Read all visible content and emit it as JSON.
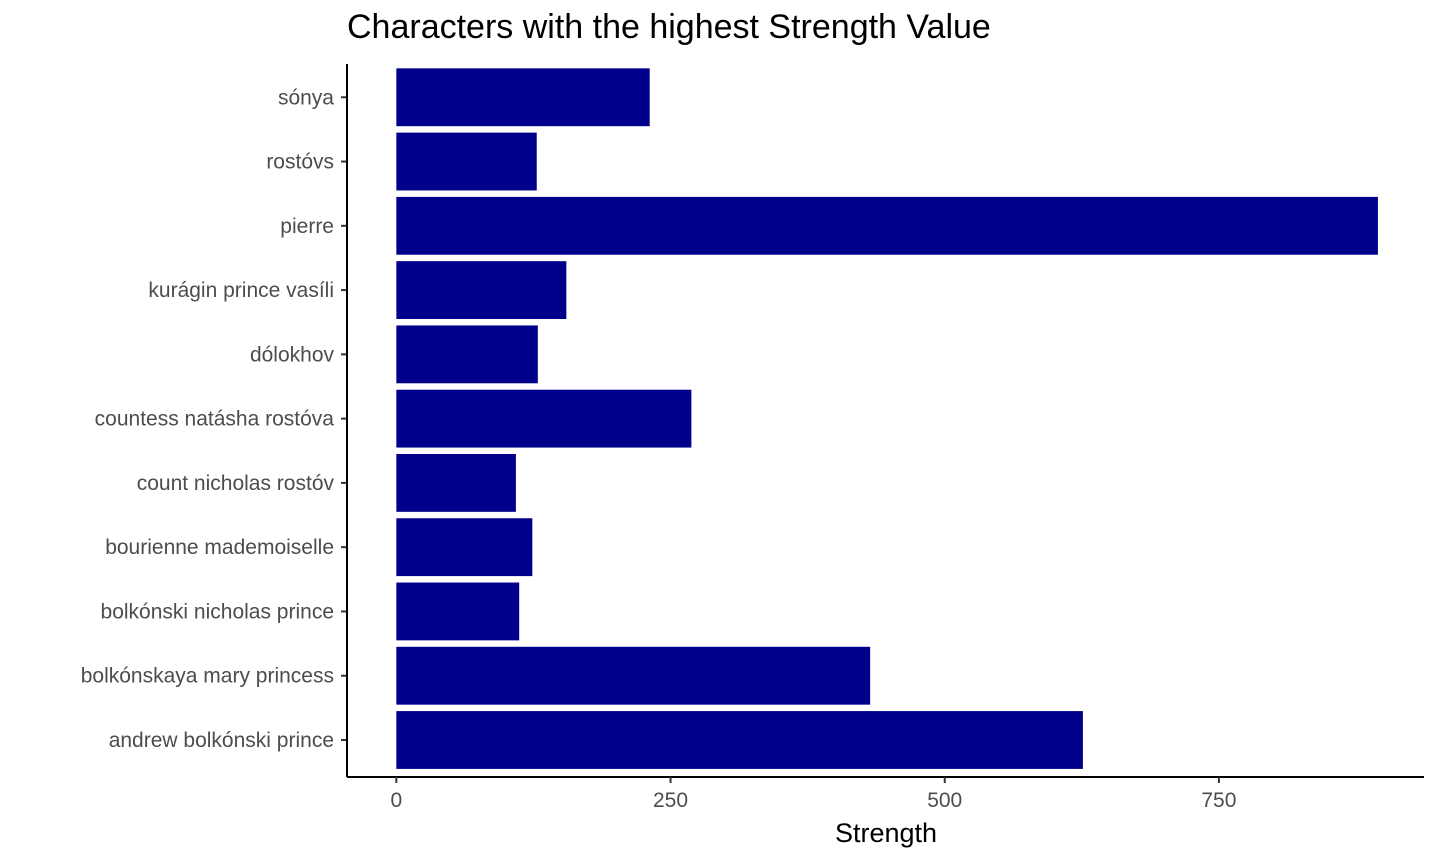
{
  "chart_data": {
    "type": "bar",
    "orientation": "horizontal",
    "title": "Characters with the highest Strength Value",
    "xlabel": "Strength",
    "ylabel": "",
    "categories": [
      "andrew bolkónski prince",
      "bolkónskaya mary princess",
      "bolkónski nicholas prince",
      "bourienne mademoiselle",
      "count nicholas rostóv",
      "countess natásha rostóva",
      "dólokhov",
      "kurágin prince vasíli",
      "pierre",
      "rostóvs",
      "sónya"
    ],
    "values": [
      626,
      432,
      112,
      124,
      109,
      269,
      129,
      155,
      895,
      128,
      231
    ],
    "xlim": [
      -45,
      937
    ],
    "xticks": [
      0,
      250,
      500,
      750
    ],
    "xtick_labels": [
      "0",
      "250",
      "500",
      "750"
    ],
    "bar_color": "#00008B",
    "grid": false,
    "legend": "none"
  }
}
